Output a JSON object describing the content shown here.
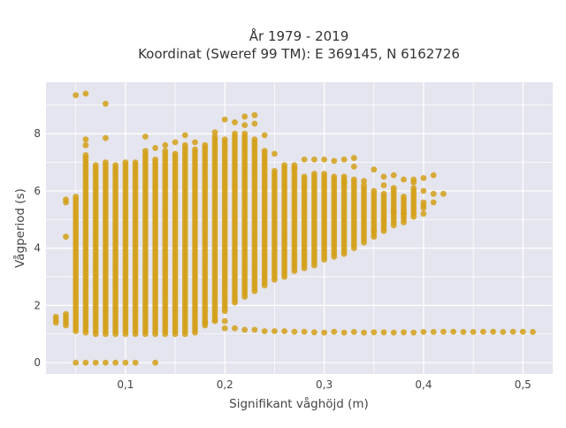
{
  "chart_data": {
    "type": "scatter",
    "title_line1": "År 1979 - 2019",
    "title_line2": "Koordinat (Sweref 99 TM): E 369145, N 6162726",
    "xlabel": "Signifikant våghöjd (m)",
    "ylabel": "Vågperiod (s)",
    "xlim": [
      0.02,
      0.53
    ],
    "ylim": [
      -0.4,
      9.8
    ],
    "x_ticks": [
      {
        "value": 0.1,
        "label": "0,1"
      },
      {
        "value": 0.2,
        "label": "0,2"
      },
      {
        "value": 0.3,
        "label": "0,3"
      },
      {
        "value": 0.4,
        "label": "0,4"
      },
      {
        "value": 0.5,
        "label": "0,5"
      }
    ],
    "y_ticks": [
      {
        "value": 0,
        "label": "0"
      },
      {
        "value": 2,
        "label": "2"
      },
      {
        "value": 4,
        "label": "4"
      },
      {
        "value": 6,
        "label": "6"
      },
      {
        "value": 8,
        "label": "8"
      }
    ],
    "grid": true,
    "background": "#e5e5ef",
    "marker_color": "#d4a017",
    "columns": [
      {
        "x": 0.03,
        "ymin": 1.4,
        "ymax": 1.6
      },
      {
        "x": 0.04,
        "ymin": 1.3,
        "ymax": 1.7
      },
      {
        "x": 0.05,
        "ymin": 1.1,
        "ymax": 5.8
      },
      {
        "x": 0.06,
        "ymin": 1.05,
        "ymax": 7.3
      },
      {
        "x": 0.07,
        "ymin": 1.0,
        "ymax": 6.9
      },
      {
        "x": 0.08,
        "ymin": 1.0,
        "ymax": 7.0
      },
      {
        "x": 0.09,
        "ymin": 1.0,
        "ymax": 6.9
      },
      {
        "x": 0.1,
        "ymin": 1.0,
        "ymax": 7.0
      },
      {
        "x": 0.11,
        "ymin": 1.0,
        "ymax": 7.0
      },
      {
        "x": 0.12,
        "ymin": 1.0,
        "ymax": 7.4
      },
      {
        "x": 0.13,
        "ymin": 1.0,
        "ymax": 7.1
      },
      {
        "x": 0.14,
        "ymin": 1.0,
        "ymax": 7.4
      },
      {
        "x": 0.15,
        "ymin": 1.0,
        "ymax": 7.3
      },
      {
        "x": 0.16,
        "ymin": 1.0,
        "ymax": 7.6
      },
      {
        "x": 0.17,
        "ymin": 1.05,
        "ymax": 7.5
      },
      {
        "x": 0.18,
        "ymin": 1.3,
        "ymax": 7.6
      },
      {
        "x": 0.19,
        "ymin": 1.5,
        "ymax": 7.9
      },
      {
        "x": 0.2,
        "ymin": 1.8,
        "ymax": 7.8
      },
      {
        "x": 0.21,
        "ymin": 2.1,
        "ymax": 8.0
      },
      {
        "x": 0.22,
        "ymin": 2.3,
        "ymax": 8.0
      },
      {
        "x": 0.23,
        "ymin": 2.5,
        "ymax": 7.8
      },
      {
        "x": 0.24,
        "ymin": 2.7,
        "ymax": 7.4
      },
      {
        "x": 0.25,
        "ymin": 2.9,
        "ymax": 6.7
      },
      {
        "x": 0.26,
        "ymin": 3.0,
        "ymax": 6.8
      },
      {
        "x": 0.27,
        "ymin": 3.2,
        "ymax": 6.9
      },
      {
        "x": 0.28,
        "ymin": 3.3,
        "ymax": 6.5
      },
      {
        "x": 0.29,
        "ymin": 3.4,
        "ymax": 6.6
      },
      {
        "x": 0.3,
        "ymin": 3.6,
        "ymax": 6.6
      },
      {
        "x": 0.31,
        "ymin": 3.7,
        "ymax": 6.5
      },
      {
        "x": 0.32,
        "ymin": 3.8,
        "ymax": 6.5
      },
      {
        "x": 0.33,
        "ymin": 4.0,
        "ymax": 6.4
      },
      {
        "x": 0.34,
        "ymin": 4.2,
        "ymax": 6.2
      },
      {
        "x": 0.35,
        "ymin": 4.4,
        "ymax": 6.0
      },
      {
        "x": 0.36,
        "ymin": 4.6,
        "ymax": 5.9
      },
      {
        "x": 0.37,
        "ymin": 4.8,
        "ymax": 6.1
      },
      {
        "x": 0.38,
        "ymin": 4.9,
        "ymax": 5.8
      },
      {
        "x": 0.39,
        "ymin": 5.1,
        "ymax": 6.1
      },
      {
        "x": 0.4,
        "ymin": 5.4,
        "ymax": 5.6
      }
    ],
    "points": [
      [
        0.04,
        5.7
      ],
      [
        0.04,
        5.6
      ],
      [
        0.04,
        4.4
      ],
      [
        0.05,
        9.35
      ],
      [
        0.06,
        9.4
      ],
      [
        0.08,
        9.05
      ],
      [
        0.06,
        7.8
      ],
      [
        0.06,
        7.6
      ],
      [
        0.08,
        7.85
      ],
      [
        0.12,
        7.9
      ],
      [
        0.13,
        7.5
      ],
      [
        0.14,
        7.6
      ],
      [
        0.15,
        7.7
      ],
      [
        0.16,
        7.95
      ],
      [
        0.17,
        7.7
      ],
      [
        0.19,
        8.05
      ],
      [
        0.2,
        8.5
      ],
      [
        0.21,
        8.4
      ],
      [
        0.22,
        8.6
      ],
      [
        0.23,
        8.65
      ],
      [
        0.22,
        8.3
      ],
      [
        0.23,
        8.35
      ],
      [
        0.24,
        7.95
      ],
      [
        0.25,
        7.3
      ],
      [
        0.26,
        6.9
      ],
      [
        0.27,
        6.8
      ],
      [
        0.28,
        7.1
      ],
      [
        0.29,
        7.1
      ],
      [
        0.3,
        7.1
      ],
      [
        0.31,
        7.05
      ],
      [
        0.32,
        7.1
      ],
      [
        0.33,
        7.15
      ],
      [
        0.33,
        6.85
      ],
      [
        0.35,
        6.75
      ],
      [
        0.36,
        6.5
      ],
      [
        0.37,
        6.55
      ],
      [
        0.38,
        6.4
      ],
      [
        0.39,
        6.3
      ],
      [
        0.39,
        6.4
      ],
      [
        0.4,
        6.45
      ],
      [
        0.4,
        6.0
      ],
      [
        0.41,
        6.55
      ],
      [
        0.41,
        5.9
      ],
      [
        0.42,
        5.9
      ],
      [
        0.41,
        5.6
      ],
      [
        0.4,
        5.2
      ],
      [
        0.37,
        5.3
      ],
      [
        0.38,
        5.2
      ],
      [
        0.05,
        0.0
      ],
      [
        0.06,
        0.0
      ],
      [
        0.07,
        0.0
      ],
      [
        0.08,
        0.0
      ],
      [
        0.09,
        0.0
      ],
      [
        0.1,
        0.0
      ],
      [
        0.11,
        0.0
      ],
      [
        0.13,
        0.0
      ],
      [
        0.19,
        1.45
      ],
      [
        0.2,
        1.45
      ],
      [
        0.18,
        1.4
      ],
      [
        0.2,
        1.2
      ],
      [
        0.21,
        1.2
      ],
      [
        0.22,
        1.15
      ],
      [
        0.23,
        1.15
      ],
      [
        0.24,
        1.1
      ],
      [
        0.25,
        1.1
      ],
      [
        0.26,
        1.1
      ],
      [
        0.27,
        1.08
      ],
      [
        0.28,
        1.08
      ],
      [
        0.29,
        1.06
      ],
      [
        0.3,
        1.05
      ],
      [
        0.31,
        1.08
      ],
      [
        0.32,
        1.05
      ],
      [
        0.33,
        1.07
      ],
      [
        0.34,
        1.05
      ],
      [
        0.35,
        1.06
      ],
      [
        0.36,
        1.06
      ],
      [
        0.37,
        1.05
      ],
      [
        0.38,
        1.06
      ],
      [
        0.39,
        1.05
      ],
      [
        0.4,
        1.07
      ],
      [
        0.41,
        1.07
      ],
      [
        0.42,
        1.08
      ],
      [
        0.43,
        1.08
      ],
      [
        0.44,
        1.07
      ],
      [
        0.45,
        1.07
      ],
      [
        0.46,
        1.08
      ],
      [
        0.47,
        1.08
      ],
      [
        0.48,
        1.07
      ],
      [
        0.49,
        1.08
      ],
      [
        0.5,
        1.08
      ],
      [
        0.51,
        1.07
      ],
      [
        0.32,
        6.3
      ],
      [
        0.34,
        6.35
      ],
      [
        0.36,
        6.2
      ],
      [
        0.36,
        5.0
      ],
      [
        0.35,
        4.6
      ]
    ]
  }
}
